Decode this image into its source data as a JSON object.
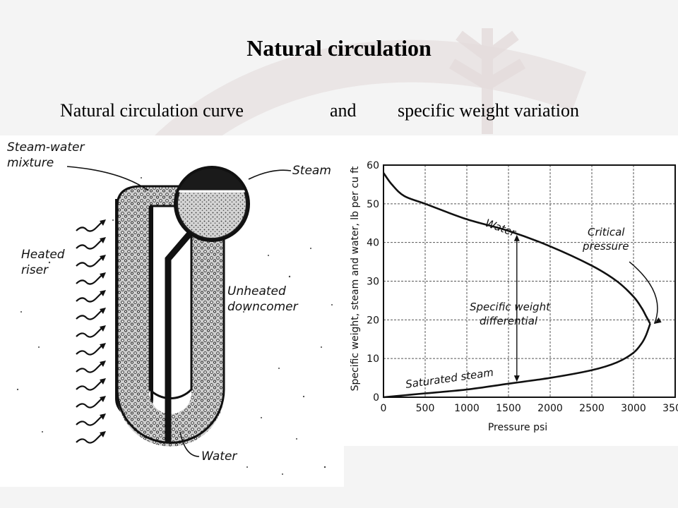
{
  "slide": {
    "title": "Natural circulation",
    "subtitle_left": "Natural circulation curve",
    "subtitle_mid": "and",
    "subtitle_right": "specific weight variation"
  },
  "boiler_diagram": {
    "labels": {
      "steam_water_line1": "Steam-water",
      "steam_water_line2": "mixture",
      "steam": "Steam",
      "heated_line1": "Heated",
      "heated_line2": "riser",
      "unheated_line1": "Unheated",
      "unheated_line2": "downcomer",
      "water": "Water"
    }
  },
  "chart_labels": {
    "ylabel": "Specific weight, steam and water, lb per cu ft",
    "xlabel": "Pressure psi",
    "water": "Water",
    "critical_line1": "Critical",
    "critical_line2": "pressure",
    "diff_line1": "Specific weight",
    "diff_line2": "differential",
    "sat_steam": "Saturated steam"
  },
  "chart_data": {
    "type": "line",
    "title": "",
    "xlabel": "Pressure psi",
    "ylabel": "Specific weight, steam and water, lb per cu ft",
    "xlim": [
      0,
      3500
    ],
    "ylim": [
      0,
      60
    ],
    "x_ticks": [
      0,
      500,
      1000,
      1500,
      2000,
      2500,
      3000,
      3500
    ],
    "y_ticks": [
      0,
      10,
      20,
      30,
      40,
      50,
      60
    ],
    "grid": true,
    "series": [
      {
        "name": "Water",
        "x": [
          0,
          100,
          250,
          500,
          1000,
          1500,
          2000,
          2500,
          2800,
          3000,
          3100,
          3150,
          3200
        ],
        "y": [
          58,
          55,
          52,
          50,
          46,
          43,
          39,
          34,
          30,
          26,
          23,
          21,
          19
        ]
      },
      {
        "name": "Saturated steam",
        "x": [
          0,
          250,
          500,
          1000,
          1500,
          2000,
          2500,
          2800,
          3000,
          3100,
          3150,
          3200
        ],
        "y": [
          0,
          0.5,
          1,
          2,
          3.5,
          5,
          7,
          9,
          11.5,
          14,
          16,
          19
        ]
      }
    ],
    "annotations": [
      "Water",
      "Critical pressure",
      "Specific weight differential",
      "Saturated steam"
    ]
  }
}
